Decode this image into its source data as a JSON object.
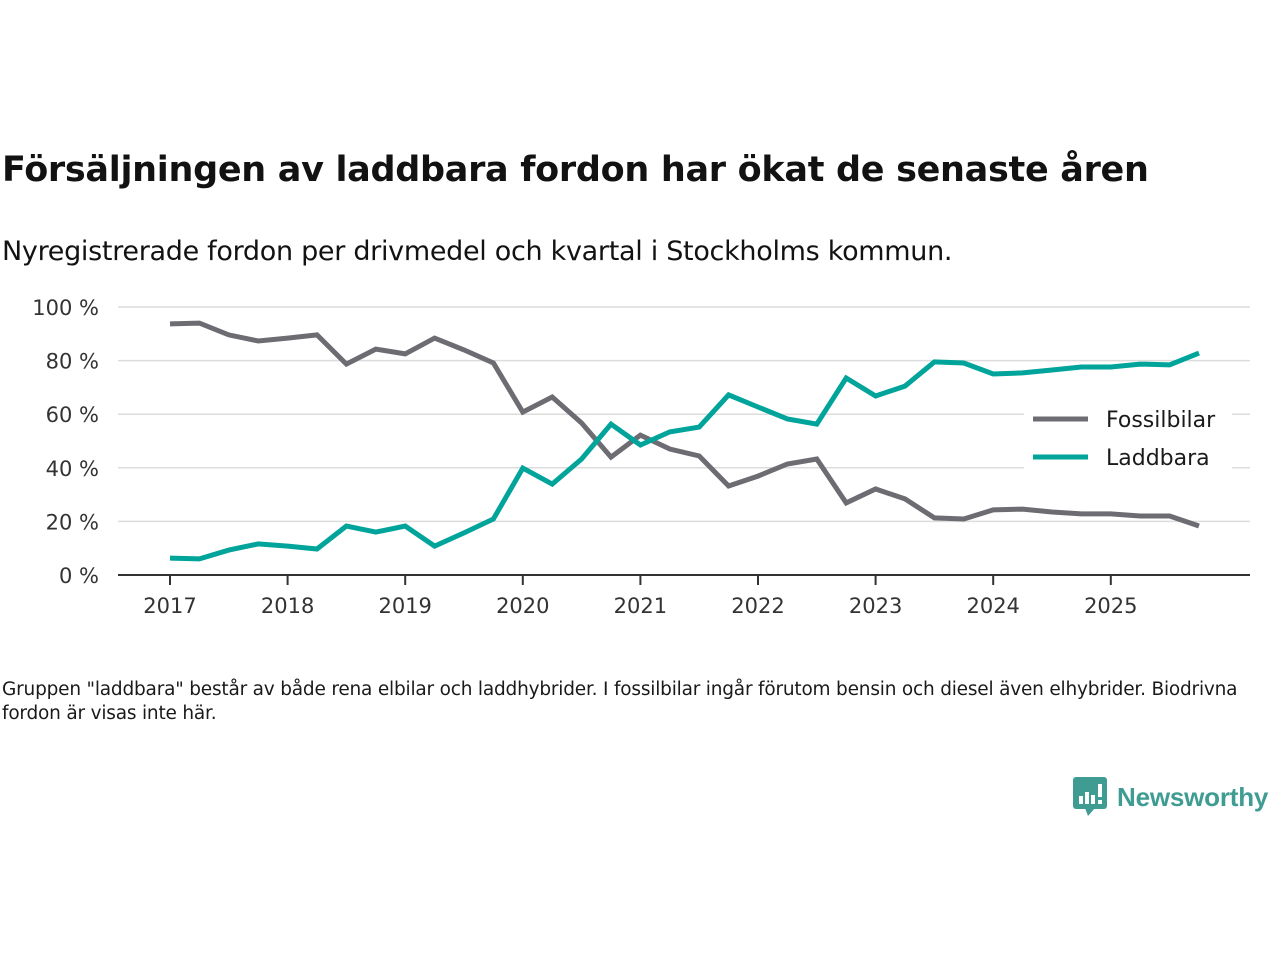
{
  "header": {
    "title": "Försäljningen av laddbara fordon har ökat de senaste åren",
    "subtitle": "Nyregistrerade fordon per drivmedel och kvartal i Stockholms kommun."
  },
  "footnote": "Gruppen \"laddbara\" består av både rena elbilar och laddhybrider. I fossilbilar ingår förutom bensin och diesel även elhybrider. Biodrivna fordon är visas inte här.",
  "logo": {
    "text": "Newsworthy",
    "icon": "newsworthy-chart-bubble-icon",
    "color": "#3f9c92"
  },
  "chart_data": {
    "type": "line",
    "title": "Försäljningen av laddbara fordon har ökat de senaste åren",
    "subtitle": "Nyregistrerade fordon per drivmedel och kvartal i Stockholms kommun.",
    "xlabel": "",
    "ylabel": "",
    "x": [
      "2017-Q1",
      "2017-Q2",
      "2017-Q3",
      "2017-Q4",
      "2018-Q1",
      "2018-Q2",
      "2018-Q3",
      "2018-Q4",
      "2019-Q1",
      "2019-Q2",
      "2019-Q3",
      "2019-Q4",
      "2020-Q1",
      "2020-Q2",
      "2020-Q3",
      "2020-Q4",
      "2021-Q1",
      "2021-Q2",
      "2021-Q3",
      "2021-Q4",
      "2022-Q1",
      "2022-Q2",
      "2022-Q3",
      "2022-Q4",
      "2023-Q1",
      "2023-Q2",
      "2023-Q3",
      "2023-Q4",
      "2024-Q1",
      "2024-Q2",
      "2024-Q3",
      "2024-Q4",
      "2025-Q1",
      "2025-Q2",
      "2025-Q3",
      "2025-Q4"
    ],
    "x_ticks": [
      "2017",
      "2018",
      "2019",
      "2020",
      "2021",
      "2022",
      "2023",
      "2024",
      "2025"
    ],
    "y_ticks": [
      "0 %",
      "20 %",
      "40 %",
      "60 %",
      "80 %",
      "100 %"
    ],
    "ylim": [
      0,
      100
    ],
    "grid": true,
    "legend_position": "right",
    "series": [
      {
        "name": "Fossilbilar",
        "color": "#6d6c72",
        "values": [
          93.7,
          94.0,
          89.6,
          87.3,
          88.4,
          89.6,
          78.7,
          84.3,
          82.5,
          88.4,
          84.0,
          79.1,
          60.8,
          66.4,
          56.7,
          44.0,
          52.2,
          47.0,
          44.4,
          33.2,
          36.9,
          41.4,
          43.3,
          26.9,
          32.1,
          28.4,
          21.3,
          20.9,
          24.3,
          24.6,
          23.5,
          22.8,
          22.8,
          22.0,
          22.0,
          18.3
        ]
      },
      {
        "name": "Laddbara",
        "color": "#00a49a",
        "values": [
          6.3,
          6.0,
          9.3,
          11.6,
          10.8,
          9.7,
          18.3,
          16.0,
          18.3,
          10.8,
          15.7,
          20.9,
          39.9,
          33.9,
          43.3,
          56.3,
          48.5,
          53.4,
          55.2,
          67.2,
          62.7,
          58.2,
          56.3,
          73.5,
          66.8,
          70.5,
          79.5,
          79.1,
          75.0,
          75.4,
          76.5,
          77.6,
          77.6,
          78.7,
          78.4,
          82.8
        ]
      }
    ]
  }
}
